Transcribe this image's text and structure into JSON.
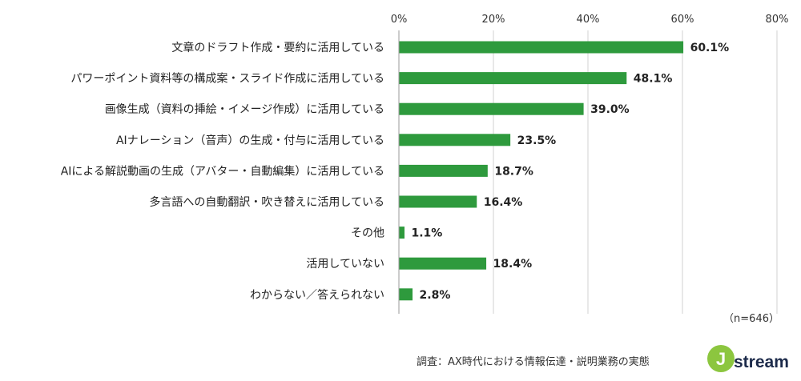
{
  "chart_data": {
    "type": "bar",
    "orientation": "horizontal",
    "categories": [
      "文章のドラフト作成・要約に活用している",
      "パワーポイント資料等の構成案・スライド作成に活用している",
      "画像生成（資料の挿絵・イメージ作成）に活用している",
      "AIナレーション（音声）の生成・付与に活用している",
      "AIによる解説動画の生成（アバター・自動編集）に活用している",
      "多言語への自動翻訳・吹き替えに活用している",
      "その他",
      "活用していない",
      "わからない／答えられない"
    ],
    "values": [
      60.1,
      48.1,
      39.0,
      23.5,
      18.7,
      16.4,
      1.1,
      18.4,
      2.8
    ],
    "value_labels": [
      "60.1%",
      "48.1%",
      "39.0%",
      "23.5%",
      "18.7%",
      "16.4%",
      "1.1%",
      "18.4%",
      "2.8%"
    ],
    "xlim": [
      0,
      80
    ],
    "x_ticks": [
      "0%",
      "20%",
      "40%",
      "60%",
      "80%"
    ],
    "x_tick_values": [
      0,
      20,
      40,
      60,
      80
    ],
    "axis_position": "top",
    "grid": true,
    "bar_color": "#2e9a3d"
  },
  "notes": {
    "sample_size": "（n=646）",
    "source": "調査：AX時代における情報伝達・説明業務の実態"
  },
  "logo": {
    "text": "Jstream"
  }
}
